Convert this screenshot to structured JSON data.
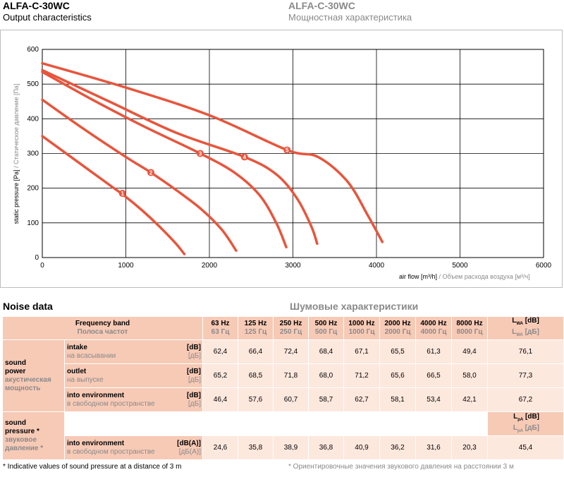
{
  "header": {
    "title_en": "ALFA-C-30WC",
    "subtitle_en": "Output characteristics",
    "title_ru": "ALFA-C-30WC",
    "subtitle_ru": "Мощностная характеристика"
  },
  "chart_data": {
    "type": "line",
    "xlabel_en": "air flow [m³/h]",
    "xlabel_ru": "/ Объем расхода воздуха [м³/ч]",
    "ylabel_en": "static pressure [Pa]",
    "ylabel_ru": "/ Статическое давление [Па]",
    "xlim": [
      0,
      6000
    ],
    "ylim": [
      0,
      600
    ],
    "x_ticks": [
      0,
      1000,
      2000,
      3000,
      4000,
      5000,
      6000
    ],
    "y_ticks": [
      0,
      100,
      200,
      300,
      400,
      500,
      600
    ],
    "grid": true,
    "color": "#e8553c",
    "series": [
      {
        "name": "1",
        "label_at": [
          960,
          185
        ],
        "points": [
          [
            0,
            350
          ],
          [
            400,
            280
          ],
          [
            800,
            210
          ],
          [
            1000,
            175
          ],
          [
            1200,
            135
          ],
          [
            1400,
            90
          ],
          [
            1600,
            40
          ],
          [
            1700,
            10
          ]
        ]
      },
      {
        "name": "2",
        "label_at": [
          1300,
          245
        ],
        "points": [
          [
            0,
            455
          ],
          [
            500,
            370
          ],
          [
            1000,
            290
          ],
          [
            1300,
            245
          ],
          [
            1600,
            195
          ],
          [
            1900,
            140
          ],
          [
            2150,
            80
          ],
          [
            2320,
            20
          ]
        ]
      },
      {
        "name": "3",
        "label_at": [
          1890,
          300
        ],
        "points": [
          [
            0,
            535
          ],
          [
            600,
            455
          ],
          [
            1200,
            380
          ],
          [
            1890,
            300
          ],
          [
            2300,
            245
          ],
          [
            2600,
            180
          ],
          [
            2800,
            100
          ],
          [
            2920,
            30
          ]
        ]
      },
      {
        "name": "4",
        "label_at": [
          2420,
          290
        ],
        "points": [
          [
            0,
            540
          ],
          [
            800,
            450
          ],
          [
            1600,
            360
          ],
          [
            2420,
            290
          ],
          [
            2800,
            240
          ],
          [
            3050,
            170
          ],
          [
            3220,
            90
          ],
          [
            3290,
            40
          ]
        ]
      },
      {
        "name": "5",
        "label_at": [
          2930,
          310
        ],
        "points": [
          [
            0,
            560
          ],
          [
            1000,
            490
          ],
          [
            2000,
            410
          ],
          [
            2930,
            310
          ],
          [
            3300,
            290
          ],
          [
            3650,
            220
          ],
          [
            3900,
            120
          ],
          [
            4070,
            45
          ]
        ]
      }
    ]
  },
  "noise": {
    "title_en": "Noise data",
    "title_ru": "Шумовые характеристики",
    "header": {
      "band_en": "Frequency band",
      "band_ru": "Полоса частот"
    },
    "freqs": [
      {
        "en": "63 Hz",
        "ru": "63 Гц"
      },
      {
        "en": "125 Hz",
        "ru": "125 Гц"
      },
      {
        "en": "250 Hz",
        "ru": "250 Гц"
      },
      {
        "en": "500 Hz",
        "ru": "500 Гц"
      },
      {
        "en": "1000 Hz",
        "ru": "1000 Гц"
      },
      {
        "en": "2000 Hz",
        "ru": "2000 Гц"
      },
      {
        "en": "4000 Hz",
        "ru": "4000 Гц"
      },
      {
        "en": "8000 Hz",
        "ru": "8000 Гц"
      }
    ],
    "lwa": {
      "sym": "L",
      "sub": "WA",
      "unit_en": "[dB]",
      "unit_ru": "[дБ]"
    },
    "lpa": {
      "sym": "L",
      "sub": "pA",
      "unit_en": "[dB]",
      "unit_ru": "[дБ]"
    },
    "power": {
      "label_en": "sound power",
      "label_ru": "акустическая мощность",
      "rows": [
        {
          "name_en": "intake",
          "name_ru": "на всасывании",
          "unit_en": "[dB]",
          "unit_ru": "[дБ]",
          "values": [
            "62,4",
            "66,4",
            "72,4",
            "68,4",
            "67,1",
            "65,5",
            "61,3",
            "49,4"
          ],
          "total": "76,1"
        },
        {
          "name_en": "outlet",
          "name_ru": "на выпуске",
          "unit_en": "[dB]",
          "unit_ru": "[дБ]",
          "values": [
            "65,2",
            "68,5",
            "71,8",
            "68,0",
            "71,2",
            "65,6",
            "66,5",
            "58,0"
          ],
          "total": "77,3"
        },
        {
          "name_en": "into environment",
          "name_ru": "в свободном пространстве",
          "unit_en": "[dB]",
          "unit_ru": "[дБ]",
          "values": [
            "46,4",
            "57,6",
            "60,7",
            "58,7",
            "62,7",
            "58,1",
            "53,4",
            "42,1"
          ],
          "total": "67,2"
        }
      ]
    },
    "pressure": {
      "label_en": "sound pressure *",
      "label_ru": "звуковое давление *",
      "row": {
        "name_en": "into environment",
        "name_ru": "в свободном пространстве",
        "unit_en": "[dB(A)]",
        "unit_ru": "[дБ(A)]",
        "values": [
          "24,6",
          "35,8",
          "38,9",
          "36,8",
          "40,9",
          "36,2",
          "31,6",
          "20,3"
        ],
        "total": "45,4"
      }
    }
  },
  "footnote": {
    "en": "* Indicative values of sound pressure at a distance of 3 m",
    "ru": "* Ориентировочные значения звукового давления на расстоянии 3 м"
  }
}
